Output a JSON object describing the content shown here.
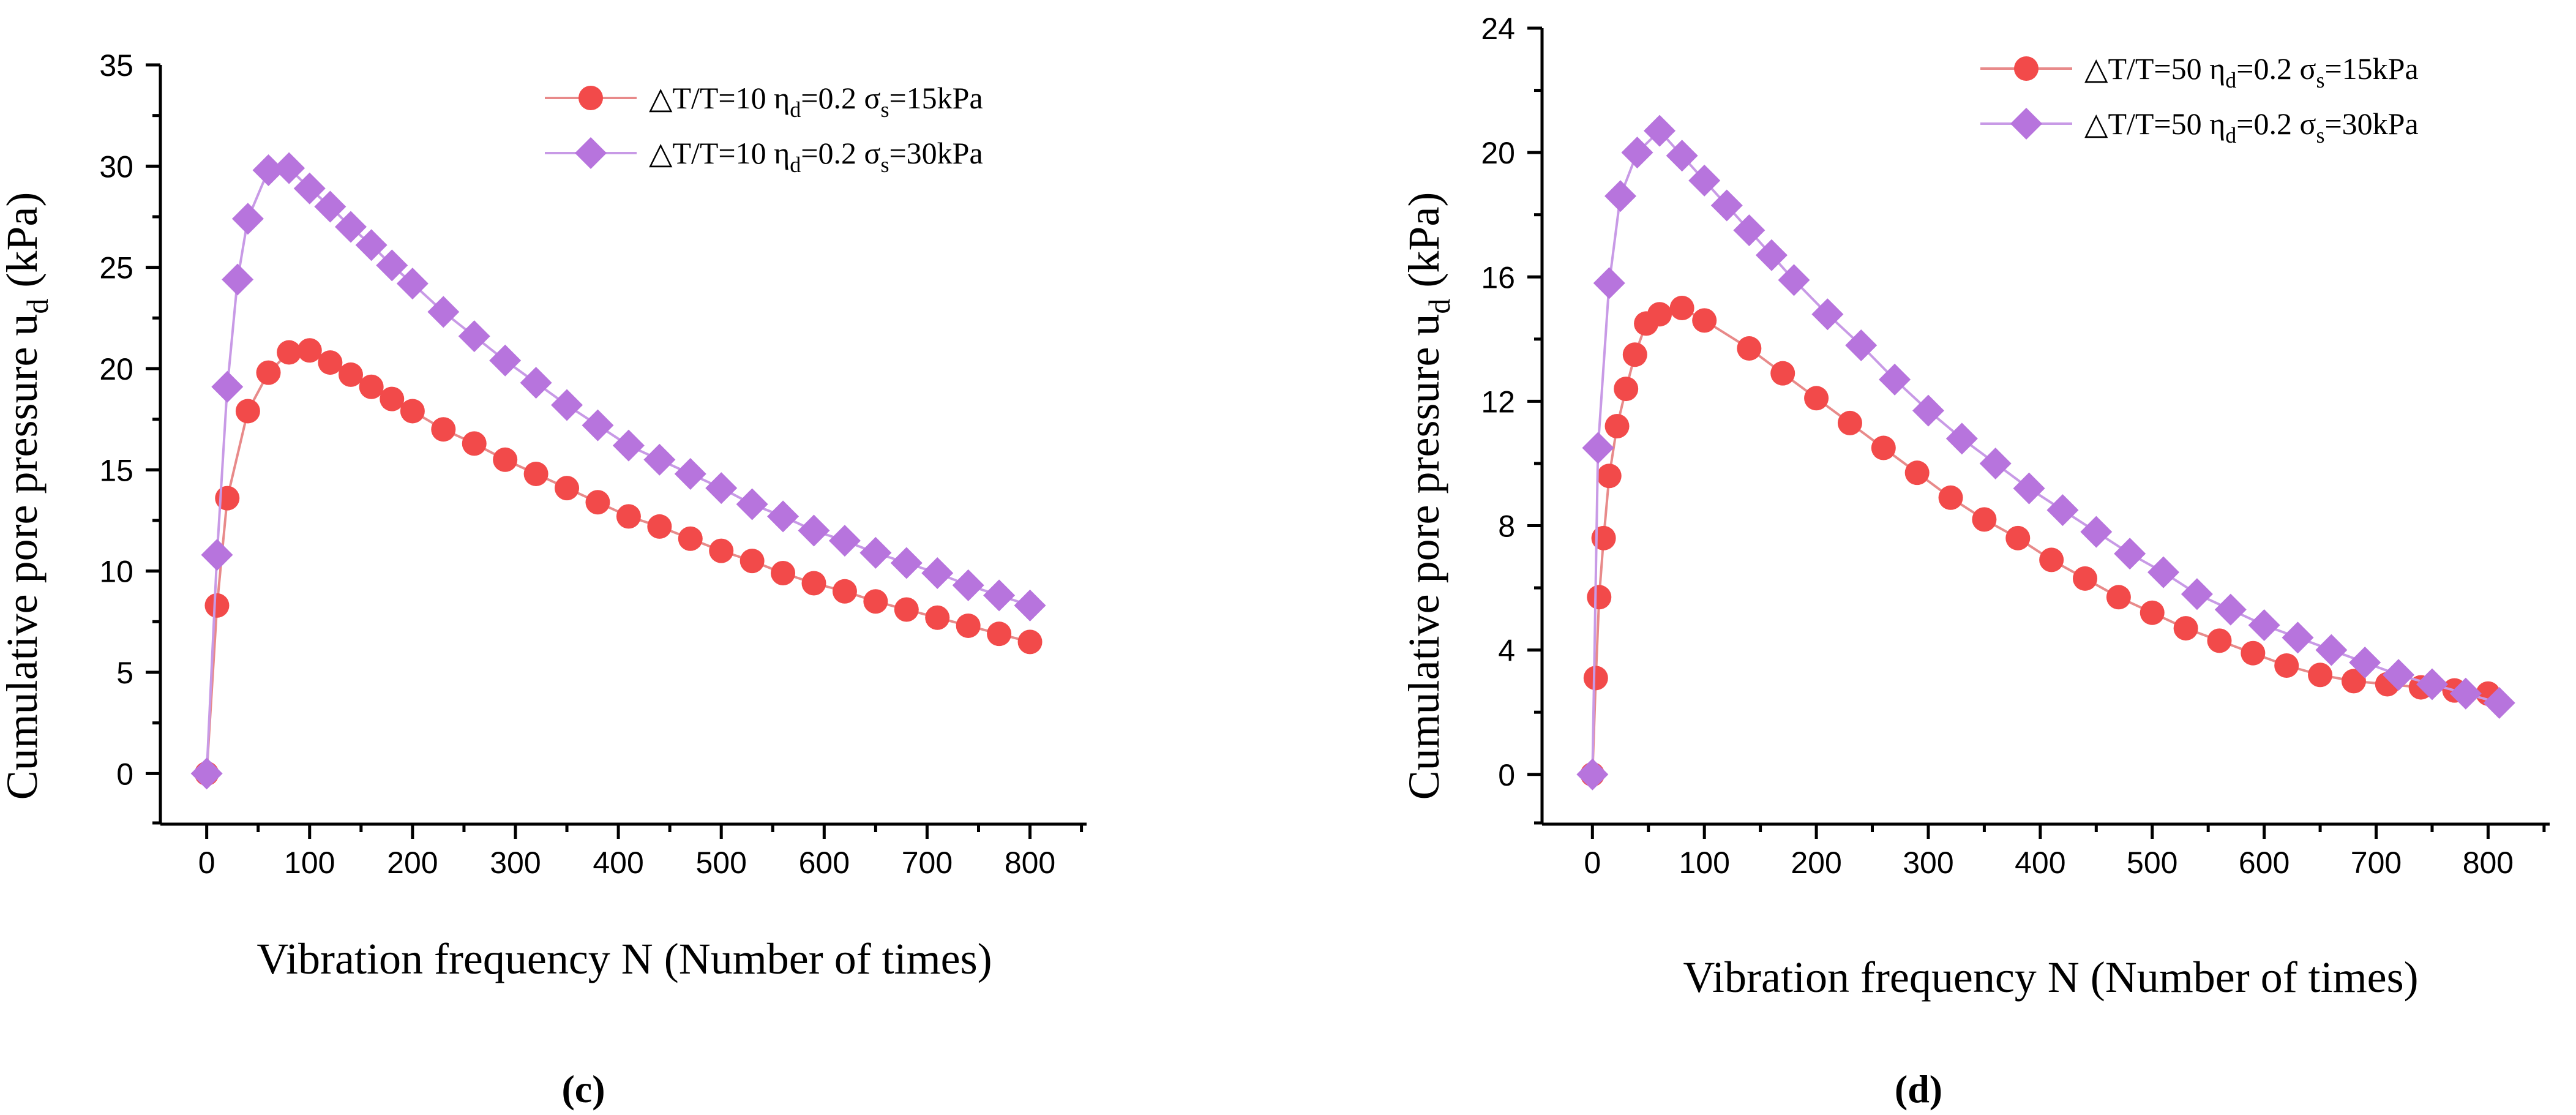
{
  "chart_data": [
    {
      "type": "line",
      "panel_label": "c",
      "xlabel": "Vibration frequency N (Number of times)",
      "ylabel": {
        "main": "Cumulative pore pressure u",
        "sub": "d",
        "unit": " (kPa)"
      },
      "xlim": [
        -45,
        855
      ],
      "ylim": [
        -2.5,
        35
      ],
      "xticks": [
        0,
        100,
        200,
        300,
        400,
        500,
        600,
        700,
        800
      ],
      "yticks": [
        0,
        5,
        10,
        15,
        20,
        25,
        30,
        35
      ],
      "legend_position": "top-right",
      "series": [
        {
          "name": "△T/T=10 ηd=0.2 σs=15kPa",
          "legend": {
            "prefix": "△T/T=10 η",
            "sub1": "d",
            "mid": "=0.2 σ",
            "sub2": "s",
            "suffix": "=15kPa"
          },
          "marker": "circle",
          "color": "#f24a4a",
          "line_color": "#e88a8a",
          "x": [
            0,
            10,
            20,
            40,
            60,
            80,
            100,
            120,
            140,
            160,
            180,
            200,
            230,
            260,
            290,
            320,
            350,
            380,
            410,
            440,
            470,
            500,
            530,
            560,
            590,
            620,
            650,
            680,
            710,
            740,
            770,
            800
          ],
          "y": [
            0,
            8.3,
            13.6,
            17.9,
            19.8,
            20.8,
            20.9,
            20.3,
            19.7,
            19.1,
            18.5,
            17.9,
            17.0,
            16.3,
            15.5,
            14.8,
            14.1,
            13.4,
            12.7,
            12.2,
            11.6,
            11.0,
            10.5,
            9.9,
            9.4,
            9.0,
            8.5,
            8.1,
            7.7,
            7.3,
            6.9,
            6.5
          ]
        },
        {
          "name": "△T/T=10 ηd=0.2 σs=30kPa",
          "legend": {
            "prefix": "△T/T=10 η",
            "sub1": "d",
            "mid": "=0.2 σ",
            "sub2": "s",
            "suffix": "=30kPa"
          },
          "marker": "diamond",
          "color": "#b774dd",
          "line_color": "#c89ae6",
          "x": [
            0,
            10,
            20,
            30,
            40,
            60,
            80,
            100,
            120,
            140,
            160,
            180,
            200,
            230,
            260,
            290,
            320,
            350,
            380,
            410,
            440,
            470,
            500,
            530,
            560,
            590,
            620,
            650,
            680,
            710,
            740,
            770,
            800
          ],
          "y": [
            0,
            10.8,
            19.1,
            24.4,
            27.4,
            29.8,
            29.9,
            28.9,
            28.0,
            27.0,
            26.1,
            25.1,
            24.2,
            22.8,
            21.6,
            20.4,
            19.3,
            18.2,
            17.2,
            16.2,
            15.5,
            14.8,
            14.1,
            13.3,
            12.7,
            12.0,
            11.5,
            10.9,
            10.4,
            9.9,
            9.3,
            8.8,
            8.3
          ]
        }
      ]
    },
    {
      "type": "line",
      "panel_label": "d",
      "xlabel": "Vibration frequency N (Number of times)",
      "ylabel": {
        "main": "Cumulative pore pressure u",
        "sub": "d",
        "unit": " (kPa)"
      },
      "xlim": [
        -45,
        855
      ],
      "ylim": [
        -1.6,
        24
      ],
      "xticks": [
        0,
        100,
        200,
        300,
        400,
        500,
        600,
        700,
        800
      ],
      "yticks": [
        0,
        4,
        8,
        12,
        16,
        20,
        24
      ],
      "legend_position": "top-right",
      "series": [
        {
          "name": "△T/T=50 ηd=0.2 σs=15kPa",
          "legend": {
            "prefix": "△T/T=50 η",
            "sub1": "d",
            "mid": "=0.2 σ",
            "sub2": "s",
            "suffix": "=15kPa"
          },
          "marker": "circle",
          "color": "#f24a4a",
          "line_color": "#e88a8a",
          "x": [
            0,
            3,
            6,
            10,
            15,
            22,
            30,
            38,
            48,
            60,
            80,
            100,
            140,
            170,
            200,
            230,
            260,
            290,
            320,
            350,
            380,
            410,
            440,
            470,
            500,
            530,
            560,
            590,
            620,
            650,
            680,
            710,
            740,
            770,
            800
          ],
          "y": [
            0,
            3.1,
            5.7,
            7.6,
            9.6,
            11.2,
            12.4,
            13.5,
            14.5,
            14.8,
            15.0,
            14.6,
            13.7,
            12.9,
            12.1,
            11.3,
            10.5,
            9.7,
            8.9,
            8.2,
            7.6,
            6.9,
            6.3,
            5.7,
            5.2,
            4.7,
            4.3,
            3.9,
            3.5,
            3.2,
            3.0,
            2.9,
            2.8,
            2.7,
            2.6
          ]
        },
        {
          "name": "△T/T=50 ηd=0.2 σs=30kPa",
          "legend": {
            "prefix": "△T/T=50 η",
            "sub1": "d",
            "mid": "=0.2 σ",
            "sub2": "s",
            "suffix": "=30kPa"
          },
          "marker": "diamond",
          "color": "#b774dd",
          "line_color": "#c89ae6",
          "x": [
            0,
            5,
            15,
            25,
            40,
            60,
            80,
            100,
            120,
            140,
            160,
            180,
            210,
            240,
            270,
            300,
            330,
            360,
            390,
            420,
            450,
            480,
            510,
            540,
            570,
            600,
            630,
            660,
            690,
            720,
            750,
            780,
            810
          ],
          "y": [
            0,
            10.5,
            15.8,
            18.6,
            20.0,
            20.7,
            19.9,
            19.1,
            18.3,
            17.5,
            16.7,
            15.9,
            14.8,
            13.8,
            12.7,
            11.7,
            10.8,
            10.0,
            9.2,
            8.5,
            7.8,
            7.1,
            6.5,
            5.8,
            5.3,
            4.8,
            4.4,
            4.0,
            3.6,
            3.2,
            2.9,
            2.6,
            2.3
          ]
        }
      ]
    }
  ]
}
